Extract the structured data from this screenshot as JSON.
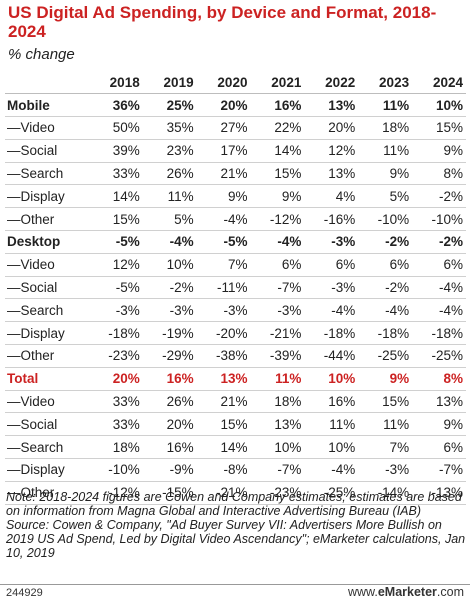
{
  "chart_data": {
    "type": "table",
    "title": "US Digital Ad Spending, by Device and Format, 2018-2024",
    "subtitle": "% change",
    "columns": [
      "2018",
      "2019",
      "2020",
      "2021",
      "2022",
      "2023",
      "2024"
    ],
    "rows": [
      {
        "label": "Mobile",
        "style": "bold",
        "values": [
          "36%",
          "25%",
          "20%",
          "16%",
          "13%",
          "11%",
          "10%"
        ]
      },
      {
        "label": "—Video",
        "style": "normal",
        "values": [
          "50%",
          "35%",
          "27%",
          "22%",
          "20%",
          "18%",
          "15%"
        ]
      },
      {
        "label": "—Social",
        "style": "normal",
        "values": [
          "39%",
          "23%",
          "17%",
          "14%",
          "12%",
          "11%",
          "9%"
        ]
      },
      {
        "label": "—Search",
        "style": "normal",
        "values": [
          "33%",
          "26%",
          "21%",
          "15%",
          "13%",
          "9%",
          "8%"
        ]
      },
      {
        "label": "—Display",
        "style": "normal",
        "values": [
          "14%",
          "11%",
          "9%",
          "9%",
          "4%",
          "5%",
          "-2%"
        ]
      },
      {
        "label": "—Other",
        "style": "normal",
        "values": [
          "15%",
          "5%",
          "-4%",
          "-12%",
          "-16%",
          "-10%",
          "-10%"
        ]
      },
      {
        "label": "Desktop",
        "style": "bold",
        "values": [
          "-5%",
          "-4%",
          "-5%",
          "-4%",
          "-3%",
          "-2%",
          "-2%"
        ]
      },
      {
        "label": "—Video",
        "style": "normal",
        "values": [
          "12%",
          "10%",
          "7%",
          "6%",
          "6%",
          "6%",
          "6%"
        ]
      },
      {
        "label": "—Social",
        "style": "normal",
        "values": [
          "-5%",
          "-2%",
          "-11%",
          "-7%",
          "-3%",
          "-2%",
          "-4%"
        ]
      },
      {
        "label": "—Search",
        "style": "normal",
        "values": [
          "-3%",
          "-3%",
          "-3%",
          "-3%",
          "-4%",
          "-4%",
          "-4%"
        ]
      },
      {
        "label": "—Display",
        "style": "normal",
        "values": [
          "-18%",
          "-19%",
          "-20%",
          "-21%",
          "-18%",
          "-18%",
          "-18%"
        ]
      },
      {
        "label": "—Other",
        "style": "normal",
        "values": [
          "-23%",
          "-29%",
          "-38%",
          "-39%",
          "-44%",
          "-25%",
          "-25%"
        ]
      },
      {
        "label": "Total",
        "style": "total",
        "values": [
          "20%",
          "16%",
          "13%",
          "11%",
          "10%",
          "9%",
          "8%"
        ]
      },
      {
        "label": "—Video",
        "style": "normal",
        "values": [
          "33%",
          "26%",
          "21%",
          "18%",
          "16%",
          "15%",
          "13%"
        ]
      },
      {
        "label": "—Social",
        "style": "normal",
        "values": [
          "33%",
          "20%",
          "15%",
          "13%",
          "11%",
          "11%",
          "9%"
        ]
      },
      {
        "label": "—Search",
        "style": "normal",
        "values": [
          "18%",
          "16%",
          "14%",
          "10%",
          "10%",
          "7%",
          "6%"
        ]
      },
      {
        "label": "—Display",
        "style": "normal",
        "values": [
          "-10%",
          "-9%",
          "-8%",
          "-7%",
          "-4%",
          "-3%",
          "-7%"
        ]
      },
      {
        "label": "—Other",
        "style": "normal",
        "values": [
          "-12%",
          "-15%",
          "-21%",
          "-23%",
          "-25%",
          "-14%",
          "-13%"
        ]
      }
    ]
  },
  "note": "Note: 2018-2024 figures are Cowen and Company estimates; estimates are based on information from Magna Global and Interactive Advertising Bureau (IAB)",
  "source": "Source: Cowen & Company, \"Ad Buyer Survey VII: Advertisers More Bullish on 2019 US Ad Spend, Led by Digital Video Ascendancy\"; eMarketer calculations, Jan 10, 2019",
  "footer": {
    "chart_id": "244929",
    "brand_prefix": "www.",
    "brand_name": "eMarketer",
    "brand_suffix": ".com"
  },
  "colors": {
    "accent": "#cc2222",
    "text": "#222222",
    "rule": "#d0d0d0"
  }
}
